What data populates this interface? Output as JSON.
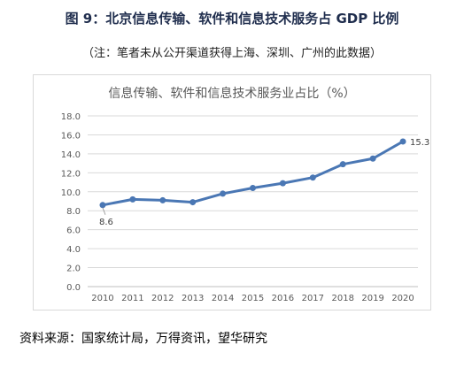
{
  "figure": {
    "title": "图 9：北京信息传输、软件和信息技术服务占 GDP 比例",
    "note": "（注：笔者未从公开渠道获得上海、深圳、广州的此数据）",
    "source": "资料来源：国家统计局，万得资讯，望华研究"
  },
  "chart_data": {
    "type": "line",
    "title": "信息传输、软件和信息技术服务业占比（%）",
    "xlabel": "",
    "ylabel": "",
    "x": [
      "2010",
      "2011",
      "2012",
      "2013",
      "2014",
      "2015",
      "2016",
      "2017",
      "2018",
      "2019",
      "2020"
    ],
    "series": [
      {
        "name": "",
        "values": [
          8.6,
          9.2,
          9.1,
          8.9,
          9.8,
          10.4,
          10.9,
          11.5,
          12.9,
          13.5,
          15.3
        ]
      }
    ],
    "ylim": [
      0,
      18
    ],
    "yticks": [
      "0.0",
      "2.0",
      "4.0",
      "6.0",
      "8.0",
      "10.0",
      "12.0",
      "14.0",
      "16.0",
      "18.0"
    ],
    "data_labels": [
      {
        "index": 0,
        "text": "8.6",
        "placement": "below"
      },
      {
        "index": 10,
        "text": "15.3",
        "placement": "right"
      }
    ],
    "grid": true,
    "legend": "none",
    "colors": {
      "line": "#4a77b4",
      "marker": "#4a77b4",
      "grid": "#d9d9d9",
      "axis": "#bfbfbf",
      "text": "#595959"
    }
  }
}
